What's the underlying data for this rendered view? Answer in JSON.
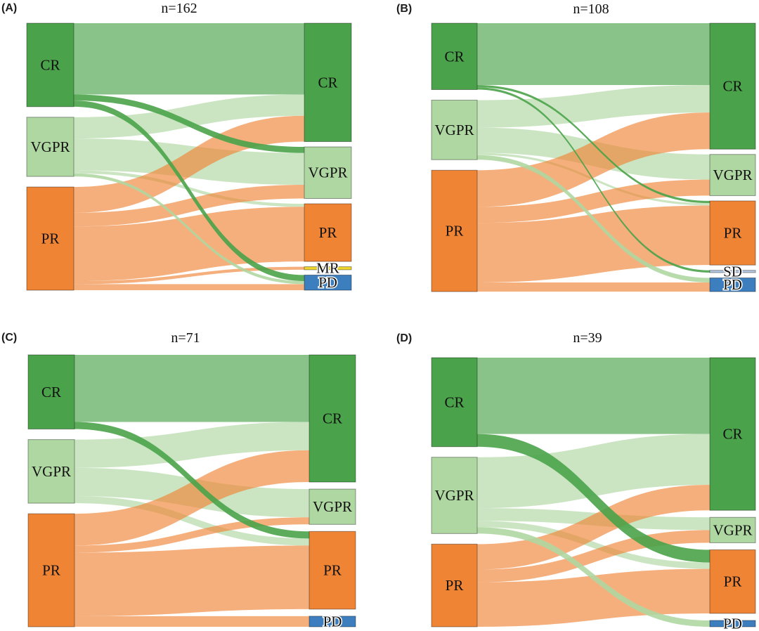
{
  "figure": {
    "background": "#ffffff",
    "node_colors": {
      "CR": "#4AA34A",
      "VGPR": "#AFD7A2",
      "PR": "#EF8435",
      "MR": "#F0D52B",
      "SD": "#B5C7E3",
      "PD": "#3D7EBE"
    },
    "link_opacity": 0.65,
    "emphasis_opacity": 0.9
  },
  "chart_data": [
    {
      "type": "sankey",
      "panel_label": "(A)",
      "title": "n=162",
      "total": 162,
      "left_nodes": [
        {
          "label": "CR",
          "value": 55
        },
        {
          "label": "VGPR",
          "value": 39
        },
        {
          "label": "PR",
          "value": 68
        }
      ],
      "right_nodes": [
        {
          "label": "CR",
          "value": 78
        },
        {
          "label": "VGPR",
          "value": 34
        },
        {
          "label": "PR",
          "value": 38
        },
        {
          "label": "MR",
          "value": 2
        },
        {
          "label": "PD",
          "value": 10
        }
      ],
      "links": [
        {
          "source": "CR",
          "target": "CR",
          "value": 47
        },
        {
          "source": "CR",
          "target": "VGPR",
          "value": 4,
          "emphasis": true
        },
        {
          "source": "CR",
          "target": "PD",
          "value": 4,
          "emphasis": true
        },
        {
          "source": "VGPR",
          "target": "CR",
          "value": 14
        },
        {
          "source": "VGPR",
          "target": "VGPR",
          "value": 21
        },
        {
          "source": "VGPR",
          "target": "PR",
          "value": 2
        },
        {
          "source": "VGPR",
          "target": "PD",
          "value": 2,
          "emphasis": true
        },
        {
          "source": "PR",
          "target": "CR",
          "value": 17
        },
        {
          "source": "PR",
          "target": "VGPR",
          "value": 9
        },
        {
          "source": "PR",
          "target": "PR",
          "value": 36
        },
        {
          "source": "PR",
          "target": "MR",
          "value": 2
        },
        {
          "source": "PR",
          "target": "PD",
          "value": 4
        }
      ]
    },
    {
      "type": "sankey",
      "panel_label": "(B)",
      "title": "n=108",
      "total": 108,
      "left_nodes": [
        {
          "label": "CR",
          "value": 29
        },
        {
          "label": "VGPR",
          "value": 26
        },
        {
          "label": "PR",
          "value": 53
        }
      ],
      "right_nodes": [
        {
          "label": "CR",
          "value": 55
        },
        {
          "label": "VGPR",
          "value": 18
        },
        {
          "label": "PR",
          "value": 28
        },
        {
          "label": "SD",
          "value": 1
        },
        {
          "label": "PD",
          "value": 6
        }
      ],
      "links": [
        {
          "source": "CR",
          "target": "CR",
          "value": 27
        },
        {
          "source": "CR",
          "target": "PR",
          "value": 1,
          "emphasis": true
        },
        {
          "source": "CR",
          "target": "SD",
          "value": 1,
          "emphasis": true
        },
        {
          "source": "VGPR",
          "target": "CR",
          "value": 12
        },
        {
          "source": "VGPR",
          "target": "VGPR",
          "value": 11
        },
        {
          "source": "VGPR",
          "target": "PR",
          "value": 1
        },
        {
          "source": "VGPR",
          "target": "PD",
          "value": 2,
          "emphasis": true
        },
        {
          "source": "PR",
          "target": "CR",
          "value": 16
        },
        {
          "source": "PR",
          "target": "VGPR",
          "value": 7
        },
        {
          "source": "PR",
          "target": "PR",
          "value": 26
        },
        {
          "source": "PR",
          "target": "PD",
          "value": 4
        }
      ]
    },
    {
      "type": "sankey",
      "panel_label": "(C)",
      "title": "n=71",
      "total": 71,
      "left_nodes": [
        {
          "label": "CR",
          "value": 21
        },
        {
          "label": "VGPR",
          "value": 18
        },
        {
          "label": "PR",
          "value": 32
        }
      ],
      "right_nodes": [
        {
          "label": "CR",
          "value": 36
        },
        {
          "label": "VGPR",
          "value": 10
        },
        {
          "label": "PR",
          "value": 22
        },
        {
          "label": "PD",
          "value": 3
        }
      ],
      "links": [
        {
          "source": "CR",
          "target": "CR",
          "value": 19
        },
        {
          "source": "CR",
          "target": "PR",
          "value": 2,
          "emphasis": true
        },
        {
          "source": "VGPR",
          "target": "CR",
          "value": 8
        },
        {
          "source": "VGPR",
          "target": "VGPR",
          "value": 8
        },
        {
          "source": "VGPR",
          "target": "PR",
          "value": 2
        },
        {
          "source": "PR",
          "target": "CR",
          "value": 9
        },
        {
          "source": "PR",
          "target": "VGPR",
          "value": 2
        },
        {
          "source": "PR",
          "target": "PR",
          "value": 18
        },
        {
          "source": "PR",
          "target": "PD",
          "value": 3
        }
      ]
    },
    {
      "type": "sankey",
      "panel_label": "(D)",
      "title": "n=39",
      "total": 39,
      "left_nodes": [
        {
          "label": "CR",
          "value": 14
        },
        {
          "label": "VGPR",
          "value": 12
        },
        {
          "label": "PR",
          "value": 13
        }
      ],
      "right_nodes": [
        {
          "label": "CR",
          "value": 24
        },
        {
          "label": "VGPR",
          "value": 4
        },
        {
          "label": "PR",
          "value": 10
        },
        {
          "label": "PD",
          "value": 1
        }
      ],
      "links": [
        {
          "source": "CR",
          "target": "CR",
          "value": 12
        },
        {
          "source": "CR",
          "target": "PR",
          "value": 2,
          "emphasis": true
        },
        {
          "source": "VGPR",
          "target": "CR",
          "value": 8
        },
        {
          "source": "VGPR",
          "target": "VGPR",
          "value": 2
        },
        {
          "source": "VGPR",
          "target": "PR",
          "value": 1
        },
        {
          "source": "VGPR",
          "target": "PD",
          "value": 1,
          "emphasis": true
        },
        {
          "source": "PR",
          "target": "CR",
          "value": 4
        },
        {
          "source": "PR",
          "target": "VGPR",
          "value": 2
        },
        {
          "source": "PR",
          "target": "PR",
          "value": 7
        }
      ]
    }
  ]
}
